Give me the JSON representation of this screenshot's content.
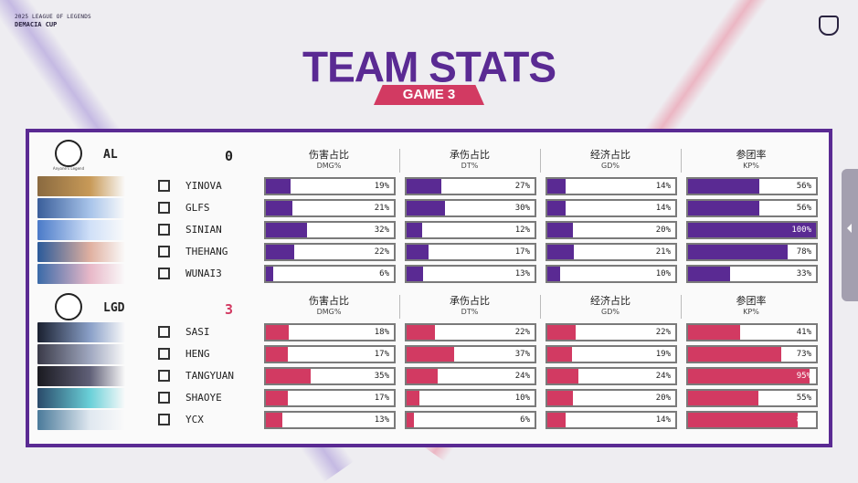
{
  "event": {
    "line1": "2025 LEAGUE OF LEGENDS",
    "line2": "DEMACIA CUP",
    "crest": "DEMACIA"
  },
  "title": "TEAM STATS",
  "game": "GAME 3",
  "colors": {
    "purple": "#5a2a93",
    "red": "#d23a62"
  },
  "columns": [
    {
      "label": "伤害占比",
      "sub": "DMG%"
    },
    {
      "label": "承伤占比",
      "sub": "DT%"
    },
    {
      "label": "经济占比",
      "sub": "GD%"
    },
    {
      "label": "参团率",
      "sub": "KP%"
    }
  ],
  "teams": [
    {
      "abbr": "AL",
      "score": "0",
      "logo_caption": "Anyone's Legend",
      "color": "purple",
      "players": [
        {
          "name": "YINOVA",
          "role_icon": "top-icon",
          "stats": [
            {
              "v": 19,
              "t": "19%"
            },
            {
              "v": 27,
              "t": "27%"
            },
            {
              "v": 14,
              "t": "14%"
            },
            {
              "v": 56,
              "t": "56%"
            }
          ],
          "portrait": [
            "#8a6a40",
            "#c89a58"
          ]
        },
        {
          "name": "GLFS",
          "role_icon": "jungle-icon",
          "stats": [
            {
              "v": 21,
              "t": "21%"
            },
            {
              "v": 30,
              "t": "30%"
            },
            {
              "v": 14,
              "t": "14%"
            },
            {
              "v": 56,
              "t": "56%"
            }
          ],
          "portrait": [
            "#3a5e9a",
            "#a8c4ea"
          ]
        },
        {
          "name": "SINIAN",
          "role_icon": "mid-icon",
          "stats": [
            {
              "v": 32,
              "t": "32%"
            },
            {
              "v": 12,
              "t": "12%"
            },
            {
              "v": 20,
              "t": "20%"
            },
            {
              "v": 100,
              "t": "100%"
            }
          ],
          "portrait": [
            "#4a7ac8",
            "#d0e0f8"
          ]
        },
        {
          "name": "THEHANG",
          "role_icon": "bot-icon",
          "stats": [
            {
              "v": 22,
              "t": "22%"
            },
            {
              "v": 17,
              "t": "17%"
            },
            {
              "v": 21,
              "t": "21%"
            },
            {
              "v": 78,
              "t": "78%"
            }
          ],
          "portrait": [
            "#2a5a9a",
            "#e0b0a0"
          ]
        },
        {
          "name": "WUNAI3",
          "role_icon": "support-icon",
          "stats": [
            {
              "v": 6,
              "t": "6%"
            },
            {
              "v": 13,
              "t": "13%"
            },
            {
              "v": 10,
              "t": "10%"
            },
            {
              "v": 33,
              "t": "33%"
            }
          ],
          "portrait": [
            "#3a6aa8",
            "#e8b8c8"
          ]
        }
      ]
    },
    {
      "abbr": "LGD",
      "score": "3",
      "logo_caption": "",
      "color": "red",
      "players": [
        {
          "name": "SASI",
          "role_icon": "top-icon",
          "stats": [
            {
              "v": 18,
              "t": "18%"
            },
            {
              "v": 22,
              "t": "22%"
            },
            {
              "v": 22,
              "t": "22%"
            },
            {
              "v": 41,
              "t": "41%"
            }
          ],
          "portrait": [
            "#1a2030",
            "#8aa0c8"
          ]
        },
        {
          "name": "HENG",
          "role_icon": "jungle-icon",
          "stats": [
            {
              "v": 17,
              "t": "17%"
            },
            {
              "v": 37,
              "t": "37%"
            },
            {
              "v": 19,
              "t": "19%"
            },
            {
              "v": 73,
              "t": "73%"
            }
          ],
          "portrait": [
            "#3a3a48",
            "#a0a8c0"
          ]
        },
        {
          "name": "TANGYUAN",
          "role_icon": "mid-icon",
          "stats": [
            {
              "v": 35,
              "t": "35%"
            },
            {
              "v": 24,
              "t": "24%"
            },
            {
              "v": 24,
              "t": "24%"
            },
            {
              "v": 95,
              "t": "95%"
            }
          ],
          "portrait": [
            "#1a1a20",
            "#606078"
          ]
        },
        {
          "name": "SHAOYE",
          "role_icon": "bot-icon",
          "stats": [
            {
              "v": 17,
              "t": "17%"
            },
            {
              "v": 10,
              "t": "10%"
            },
            {
              "v": 20,
              "t": "20%"
            },
            {
              "v": 55,
              "t": "55%"
            }
          ],
          "portrait": [
            "#2a4a6a",
            "#6ad0d8"
          ]
        },
        {
          "name": "YCX",
          "role_icon": "support-icon",
          "stats": [
            {
              "v": 13,
              "t": "13%"
            },
            {
              "v": 6,
              "t": "6%"
            },
            {
              "v": 14,
              "t": "14%"
            },
            {
              "v": 86,
              "t": "86%"
            }
          ],
          "portrait": [
            "#4a7a9a",
            "#e0e8f0"
          ]
        }
      ]
    }
  ]
}
